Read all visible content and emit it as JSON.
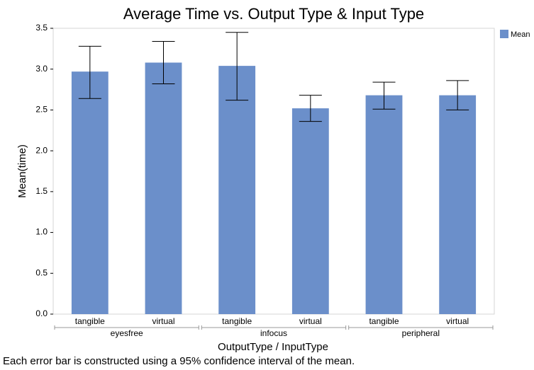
{
  "chart_data": {
    "type": "bar",
    "title": "Average Time vs. Output Type & Input Type",
    "y_label": "Mean(time)",
    "x_label": "OutputType / InputType",
    "note": "Each error bar is constructed using a 95% confidence interval of the mean.",
    "categories": [
      "tangible",
      "virtual",
      "tangible",
      "virtual",
      "tangible",
      "virtual"
    ],
    "groups": [
      "eyesfree",
      "infocus",
      "peripheral"
    ],
    "series": [
      {
        "name": "Mean",
        "color": "#6b8fca",
        "values": [
          2.97,
          3.08,
          3.04,
          2.52,
          2.68,
          2.68
        ],
        "ci_lower": [
          2.64,
          2.82,
          2.62,
          2.36,
          2.51,
          2.5
        ],
        "ci_upper": [
          3.28,
          3.34,
          3.45,
          2.68,
          2.84,
          2.86
        ]
      }
    ],
    "ylim": [
      0,
      3.5
    ],
    "yticks": [
      {
        "value": 0,
        "label": "0.0"
      },
      0.5,
      {
        "value": 1,
        "label": "1.0"
      },
      1.5,
      {
        "value": 2,
        "label": "2.0"
      },
      2.5,
      {
        "value": 3,
        "label": "3.0"
      },
      3.5
    ],
    "legend": "top-right"
  }
}
